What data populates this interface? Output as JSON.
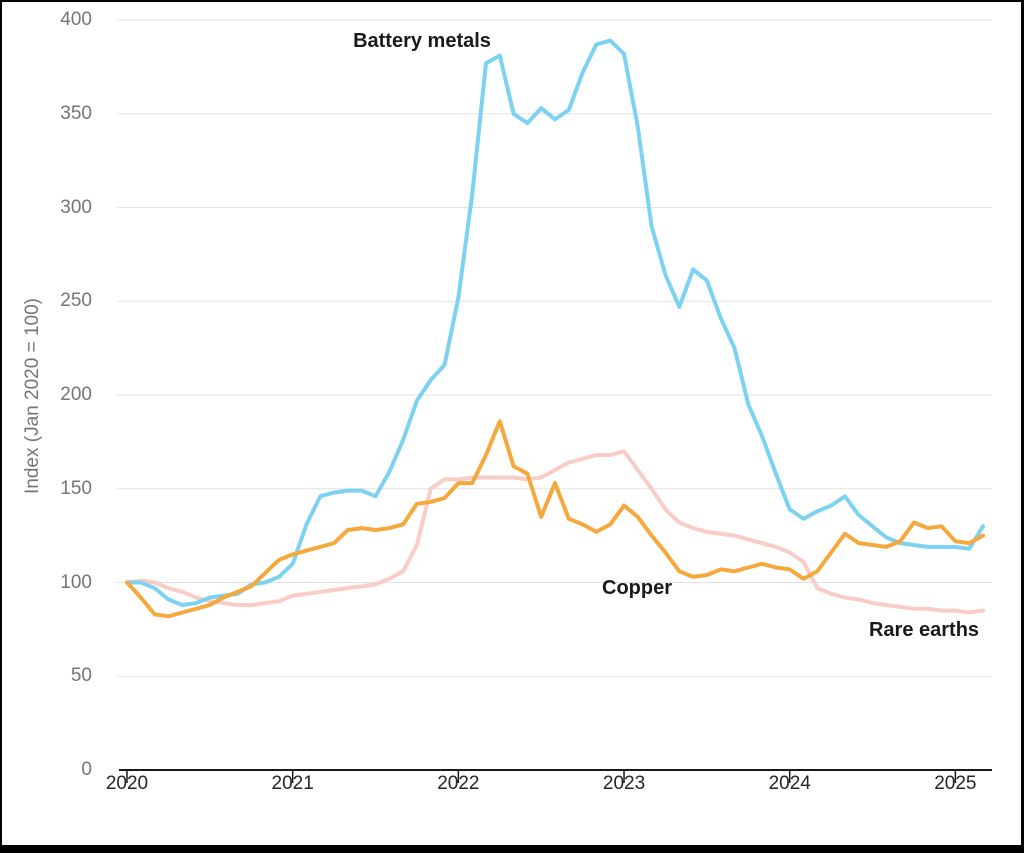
{
  "chart_data": {
    "type": "line",
    "title": "",
    "xlabel": "",
    "ylabel": "Index (Jan 2020 = 100)",
    "ylim": [
      0,
      400
    ],
    "y_ticks": [
      0,
      50,
      100,
      150,
      200,
      250,
      300,
      350,
      400
    ],
    "x_tick_labels": [
      "2020",
      "2021",
      "2022",
      "2023",
      "2024",
      "2025"
    ],
    "grid": "horizontal gridlines only",
    "legend_position": "inline labels next to lines",
    "grid_color": "#e2e2e2",
    "axis_color": "#1a1a1a",
    "tick_label_color": "#757575",
    "months": [
      "Jan 2020",
      "Feb 2020",
      "Mar 2020",
      "Apr 2020",
      "May 2020",
      "Jun 2020",
      "Jul 2020",
      "Aug 2020",
      "Sep 2020",
      "Oct 2020",
      "Nov 2020",
      "Dec 2020",
      "Jan 2021",
      "Feb 2021",
      "Mar 2021",
      "Apr 2021",
      "May 2021",
      "Jun 2021",
      "Jul 2021",
      "Aug 2021",
      "Sep 2021",
      "Oct 2021",
      "Nov 2021",
      "Dec 2021",
      "Jan 2022",
      "Feb 2022",
      "Mar 2022",
      "Apr 2022",
      "May 2022",
      "Jun 2022",
      "Jul 2022",
      "Aug 2022",
      "Sep 2022",
      "Oct 2022",
      "Nov 2022",
      "Dec 2022",
      "Jan 2023",
      "Feb 2023",
      "Mar 2023",
      "Apr 2023",
      "May 2023",
      "Jun 2023",
      "Jul 2023",
      "Aug 2023",
      "Sep 2023",
      "Oct 2023",
      "Nov 2023",
      "Dec 2023",
      "Jan 2024",
      "Feb 2024",
      "Mar 2024",
      "Apr 2024",
      "May 2024",
      "Jun 2024",
      "Jul 2024",
      "Aug 2024",
      "Sep 2024",
      "Oct 2024",
      "Nov 2024",
      "Dec 2024",
      "Jan 2025",
      "Feb 2025",
      "Mar 2025"
    ],
    "series": [
      {
        "name": "Battery metals",
        "color": "#7DD2F1",
        "values": [
          100,
          100,
          97,
          91,
          88,
          89,
          92,
          93,
          94,
          99,
          100,
          103,
          110,
          131,
          146,
          148,
          149,
          149,
          146,
          159,
          176,
          197,
          208,
          216,
          252,
          307,
          377,
          381,
          350,
          345,
          353,
          347,
          352,
          372,
          387,
          389,
          382,
          343,
          290,
          264,
          247,
          267,
          261,
          241,
          225,
          195,
          178,
          158,
          139,
          134,
          138,
          141,
          146,
          136,
          130,
          124,
          121,
          120,
          119,
          119,
          119,
          118,
          130
        ]
      },
      {
        "name": "Copper",
        "color": "#F5A83C",
        "values": [
          100,
          92,
          83,
          82,
          84,
          86,
          88,
          92,
          95,
          98,
          105,
          112,
          115,
          117,
          119,
          121,
          128,
          129,
          128,
          129,
          131,
          142,
          143,
          145,
          153,
          153,
          168,
          186,
          162,
          158,
          135,
          153,
          134,
          131,
          127,
          131,
          141,
          135,
          125,
          116,
          106,
          103,
          104,
          107,
          106,
          108,
          110,
          108,
          107,
          102,
          106,
          116,
          126,
          121,
          120,
          119,
          122,
          132,
          129,
          130,
          122,
          121,
          125
        ]
      },
      {
        "name": "Rare earths",
        "color": "#F9CCC7",
        "values": [
          100,
          101,
          100,
          97,
          95,
          92,
          90,
          89,
          88,
          88,
          89,
          90,
          93,
          94,
          95,
          96,
          97,
          98,
          99,
          102,
          106,
          120,
          150,
          155,
          155,
          156,
          156,
          156,
          156,
          155,
          156,
          160,
          164,
          166,
          168,
          168,
          170,
          160,
          150,
          139,
          132,
          129,
          127,
          126,
          125,
          123,
          121,
          119,
          116,
          111,
          97,
          94,
          92,
          91,
          89,
          88,
          87,
          86,
          86,
          85,
          85,
          84,
          85
        ]
      }
    ]
  }
}
